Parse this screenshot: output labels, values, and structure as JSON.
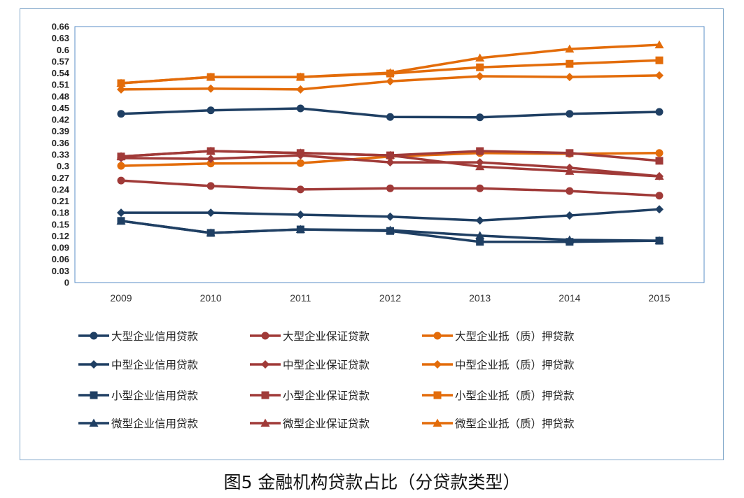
{
  "chart_data": {
    "type": "line",
    "title": "",
    "caption": "图5 金融机构贷款占比（分贷款类型）",
    "x": [
      "2009",
      "2010",
      "2011",
      "2012",
      "2013",
      "2014",
      "2015"
    ],
    "ylim": [
      0,
      0.66
    ],
    "yticks": [
      "0",
      "0.03",
      "0.06",
      "0.09",
      "0.12",
      "0.15",
      "0.18",
      "0.21",
      "0.24",
      "0.27",
      "0.3",
      "0.33",
      "0.36",
      "0.39",
      "0.42",
      "0.45",
      "0.48",
      "0.51",
      "0.54",
      "0.57",
      "0.6",
      "0.63",
      "0.66"
    ],
    "grid": false,
    "legend": "bottom",
    "series": [
      {
        "name": "大型企业信用贷款",
        "color": "#1f3f63",
        "marker": "circle",
        "values": [
          0.435,
          0.444,
          0.449,
          0.427,
          0.426,
          0.435,
          0.44
        ]
      },
      {
        "name": "大型企业保证贷款",
        "color": "#a03a38",
        "marker": "circle",
        "values": [
          0.263,
          0.249,
          0.24,
          0.243,
          0.243,
          0.236,
          0.224
        ]
      },
      {
        "name": "大型企业抵（质）押贷款",
        "color": "#e36c0a",
        "marker": "circle",
        "values": [
          0.301,
          0.307,
          0.308,
          0.325,
          0.334,
          0.332,
          0.334
        ]
      },
      {
        "name": "中型企业信用贷款",
        "color": "#1f3f63",
        "marker": "diamond",
        "values": [
          0.18,
          0.18,
          0.175,
          0.17,
          0.16,
          0.173,
          0.189
        ]
      },
      {
        "name": "中型企业保证贷款",
        "color": "#a03a38",
        "marker": "diamond",
        "values": [
          0.321,
          0.319,
          0.328,
          0.31,
          0.31,
          0.296,
          0.274
        ]
      },
      {
        "name": "中型企业抵（质）押贷款",
        "color": "#e36c0a",
        "marker": "diamond",
        "values": [
          0.498,
          0.5,
          0.498,
          0.519,
          0.532,
          0.53,
          0.534
        ]
      },
      {
        "name": "小型企业信用贷款",
        "color": "#1f3f63",
        "marker": "square",
        "values": [
          0.159,
          0.128,
          0.137,
          0.133,
          0.105,
          0.105,
          0.108
        ]
      },
      {
        "name": "小型企业保证贷款",
        "color": "#a03a38",
        "marker": "square",
        "values": [
          0.325,
          0.339,
          0.334,
          0.328,
          0.339,
          0.334,
          0.314
        ]
      },
      {
        "name": "小型企业抵（质）押贷款",
        "color": "#e36c0a",
        "marker": "square",
        "values": [
          0.514,
          0.53,
          0.53,
          0.539,
          0.555,
          0.564,
          0.573
        ]
      },
      {
        "name": "微型企业信用贷款",
        "color": "#1f3f63",
        "marker": "triangle",
        "values": [
          0.159,
          0.128,
          0.137,
          0.135,
          0.121,
          0.11,
          0.108
        ]
      },
      {
        "name": "微型企业保证贷款",
        "color": "#a03a38",
        "marker": "triangle",
        "values": [
          0.325,
          0.339,
          0.334,
          0.328,
          0.299,
          0.287,
          0.274
        ]
      },
      {
        "name": "微型企业抵（质）押贷款",
        "color": "#e36c0a",
        "marker": "triangle",
        "values": [
          0.514,
          0.53,
          0.53,
          0.541,
          0.579,
          0.602,
          0.613
        ]
      }
    ]
  }
}
